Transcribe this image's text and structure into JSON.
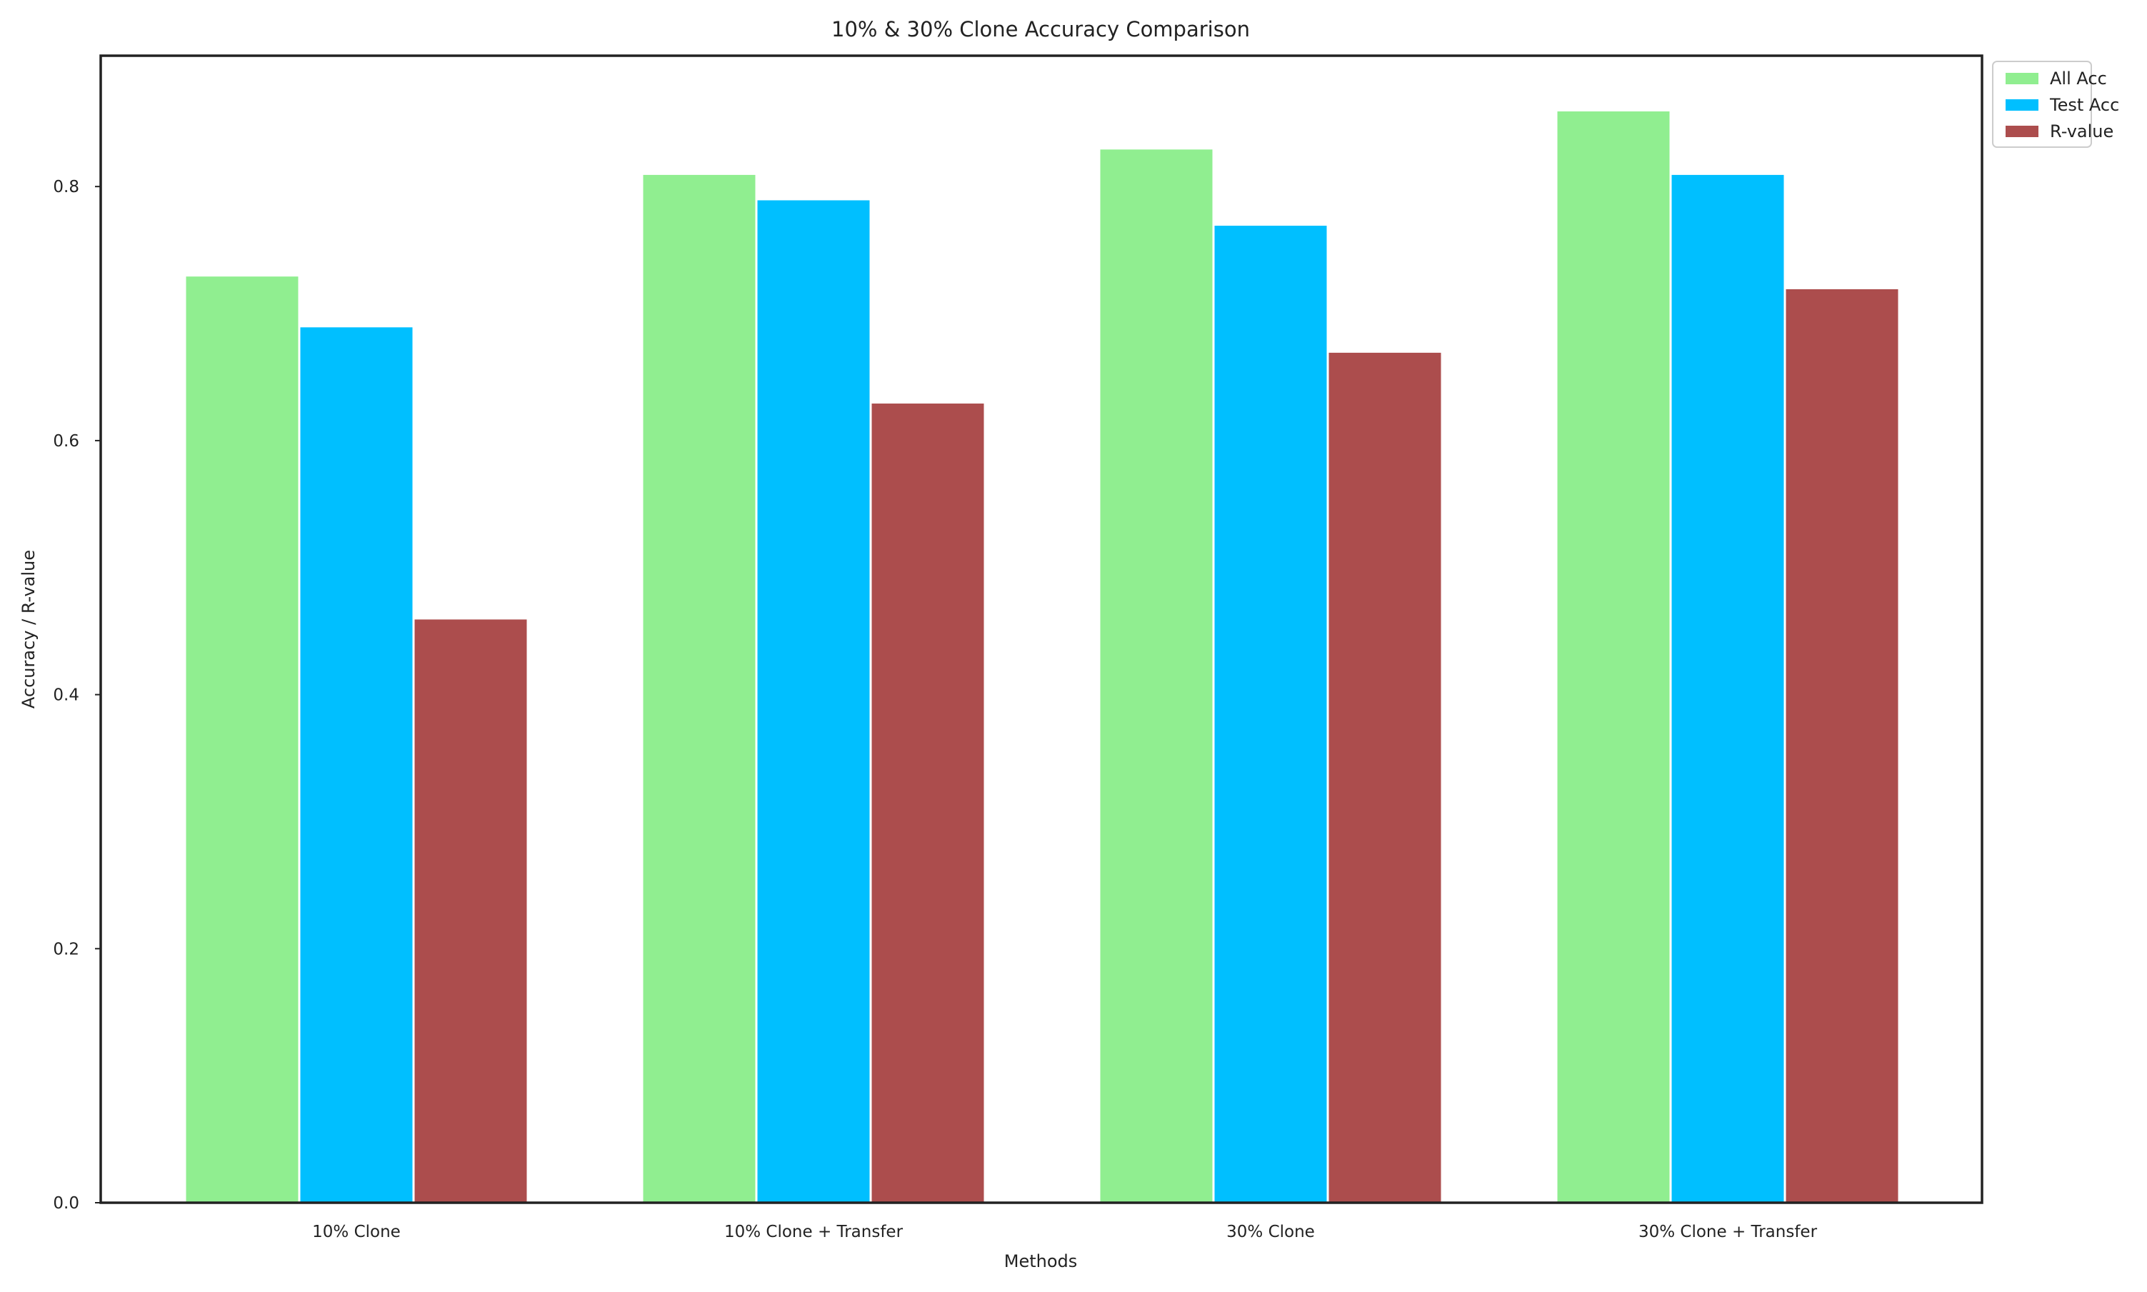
{
  "chart_data": {
    "type": "bar",
    "title": "10% & 30% Clone Accuracy Comparison",
    "xlabel": "Methods",
    "ylabel": "Accuracy / R-value",
    "categories": [
      "10% Clone",
      "10% Clone + Transfer",
      "30% Clone",
      "30% Clone + Transfer"
    ],
    "series": [
      {
        "name": "All Acc",
        "color": "#90ee90",
        "values": [
          0.73,
          0.81,
          0.83,
          0.86
        ]
      },
      {
        "name": "Test Acc",
        "color": "#00bfff",
        "values": [
          0.69,
          0.79,
          0.77,
          0.81
        ]
      },
      {
        "name": "R-value",
        "color": "#ac4d4d",
        "values": [
          0.46,
          0.63,
          0.67,
          0.72
        ]
      }
    ],
    "ylim": [
      0,
      0.903
    ],
    "yticks": [
      0.0,
      0.2,
      0.4,
      0.6,
      0.8
    ],
    "ytick_labels": [
      "0.0",
      "0.2",
      "0.4",
      "0.6",
      "0.8"
    ],
    "grid": false,
    "legend_position": "outside-top-right"
  }
}
